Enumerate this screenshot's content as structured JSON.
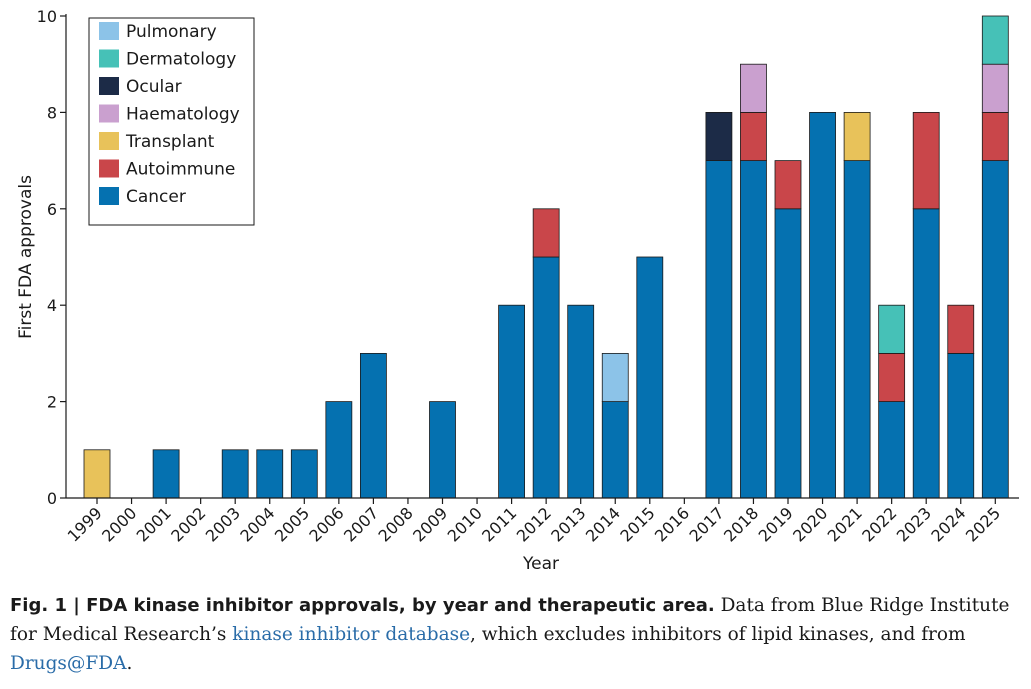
{
  "chart_data": {
    "type": "bar",
    "stacked": true,
    "xlabel": "Year",
    "ylabel": "First FDA approvals",
    "ylim": [
      0,
      10
    ],
    "yticks": [
      0,
      2,
      4,
      6,
      8,
      10
    ],
    "grid": false,
    "legend_position": "top-left",
    "categories": [
      "1999",
      "2000",
      "2001",
      "2002",
      "2003",
      "2004",
      "2005",
      "2006",
      "2007",
      "2008",
      "2009",
      "2010",
      "2011",
      "2012",
      "2013",
      "2014",
      "2015",
      "2016",
      "2017",
      "2018",
      "2019",
      "2020",
      "2021",
      "2022",
      "2023",
      "2024",
      "2025"
    ],
    "series": [
      {
        "name": "Cancer",
        "color": "#0571b0",
        "values": [
          0,
          0,
          1,
          0,
          1,
          1,
          1,
          2,
          3,
          0,
          2,
          0,
          4,
          5,
          4,
          2,
          5,
          0,
          7,
          7,
          6,
          8,
          7,
          2,
          6,
          3,
          7
        ]
      },
      {
        "name": "Autoimmune",
        "color": "#c9464a",
        "values": [
          0,
          0,
          0,
          0,
          0,
          0,
          0,
          0,
          0,
          0,
          0,
          0,
          0,
          1,
          0,
          0,
          0,
          0,
          0,
          1,
          1,
          0,
          0,
          1,
          2,
          1,
          1
        ]
      },
      {
        "name": "Transplant",
        "color": "#e8c25a",
        "values": [
          1,
          0,
          0,
          0,
          0,
          0,
          0,
          0,
          0,
          0,
          0,
          0,
          0,
          0,
          0,
          0,
          0,
          0,
          0,
          0,
          0,
          0,
          1,
          0,
          0,
          0,
          0
        ]
      },
      {
        "name": "Haematology",
        "color": "#caa0cf",
        "values": [
          0,
          0,
          0,
          0,
          0,
          0,
          0,
          0,
          0,
          0,
          0,
          0,
          0,
          0,
          0,
          0,
          0,
          0,
          0,
          1,
          0,
          0,
          0,
          0,
          0,
          0,
          1
        ]
      },
      {
        "name": "Ocular",
        "color": "#1c2b47",
        "values": [
          0,
          0,
          0,
          0,
          0,
          0,
          0,
          0,
          0,
          0,
          0,
          0,
          0,
          0,
          0,
          0,
          0,
          0,
          1,
          0,
          0,
          0,
          0,
          0,
          0,
          0,
          0
        ]
      },
      {
        "name": "Dermatology",
        "color": "#46c1b7",
        "values": [
          0,
          0,
          0,
          0,
          0,
          0,
          0,
          0,
          0,
          0,
          0,
          0,
          0,
          0,
          0,
          0,
          0,
          0,
          0,
          0,
          0,
          0,
          0,
          1,
          0,
          0,
          1
        ]
      },
      {
        "name": "Pulmonary",
        "color": "#8cc3e8",
        "values": [
          0,
          0,
          0,
          0,
          0,
          0,
          0,
          0,
          0,
          0,
          0,
          0,
          0,
          0,
          0,
          1,
          0,
          0,
          0,
          0,
          0,
          0,
          0,
          0,
          0,
          0,
          0
        ]
      }
    ],
    "legend_order": [
      "Pulmonary",
      "Dermatology",
      "Ocular",
      "Haematology",
      "Transplant",
      "Autoimmune",
      "Cancer"
    ]
  },
  "caption": {
    "title": "Fig. 1 | FDA kinase inhibitor approvals, by year and therapeutic area.",
    "text_1": " Data from Blue Ridge Institute for Medical Research’s ",
    "link_1": "kinase inhibitor database",
    "text_2": ", which excludes inhibitors of lipid kinases, and from ",
    "link_2": "Drugs@FDA",
    "text_3": "."
  }
}
